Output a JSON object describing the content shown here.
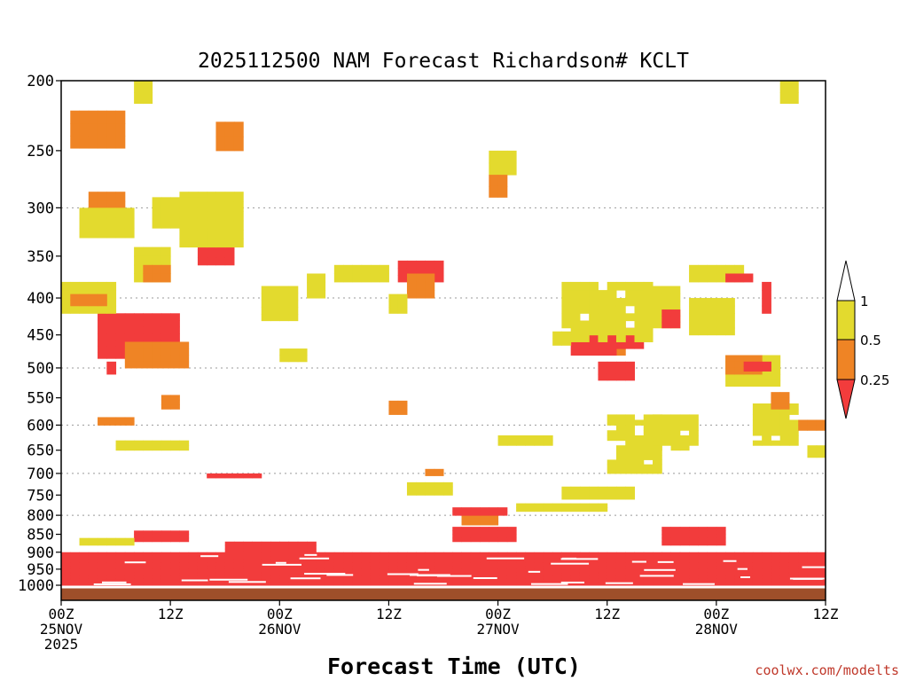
{
  "chart_data": {
    "type": "heatmap",
    "title": "2025112500 NAM Forecast Richardson# KCLT",
    "xlabel": "Forecast Time (UTC)",
    "ylabel": "",
    "credit": "coolwx.com/modelts",
    "x_unit": "forecast hour",
    "xlim": [
      0,
      84
    ],
    "y_unit": "hPa",
    "ylim": [
      1000,
      200
    ],
    "y_ticks": [
      200,
      250,
      300,
      350,
      400,
      450,
      500,
      550,
      600,
      650,
      700,
      750,
      800,
      850,
      900,
      950,
      1000
    ],
    "dotted_gridlines_hpa": [
      300,
      400,
      500,
      600,
      700,
      800
    ],
    "x_ticks": [
      {
        "hour": 0,
        "line1": "00Z",
        "line2": "25NOV",
        "line3": "2025"
      },
      {
        "hour": 12,
        "line1": "12Z",
        "line2": "",
        "line3": ""
      },
      {
        "hour": 24,
        "line1": "00Z",
        "line2": "26NOV",
        "line3": ""
      },
      {
        "hour": 36,
        "line1": "12Z",
        "line2": "",
        "line3": ""
      },
      {
        "hour": 48,
        "line1": "00Z",
        "line2": "27NOV",
        "line3": ""
      },
      {
        "hour": 60,
        "line1": "12Z",
        "line2": "",
        "line3": ""
      },
      {
        "hour": 72,
        "line1": "00Z",
        "line2": "28NOV",
        "line3": ""
      },
      {
        "hour": 84,
        "line1": "12Z",
        "line2": "",
        "line3": ""
      }
    ],
    "legend": {
      "placement": "right",
      "bins": [
        {
          "label": "0.25",
          "color": "#f23c3c",
          "range": "< 0.25"
        },
        {
          "label": "0.5",
          "color": "#ef8425",
          "range": "0.25 - 0.5"
        },
        {
          "label": "1",
          "color": "#e3da2e",
          "range": "0.5 - 1"
        },
        {
          "label": "",
          "color": "#ffffff",
          "range": "> 1"
        }
      ]
    },
    "colors": {
      "low": "#f23c3c",
      "mid": "#ef8425",
      "high": "#e3da2e",
      "ground": "#9e4f2a"
    },
    "ground_hpa": 1010,
    "regions": [
      {
        "t": [
          0,
          84
        ],
        "p": [
          900,
          1000
        ],
        "cat": "low"
      },
      {
        "t": [
          18,
          28
        ],
        "p": [
          870,
          910
        ],
        "cat": "low"
      },
      {
        "t": [
          43,
          50
        ],
        "p": [
          830,
          870
        ],
        "cat": "low"
      },
      {
        "t": [
          66,
          73
        ],
        "p": [
          830,
          880
        ],
        "cat": "low"
      },
      {
        "t": [
          8,
          14
        ],
        "p": [
          840,
          870
        ],
        "cat": "low"
      },
      {
        "t": [
          2,
          8
        ],
        "p": [
          860,
          880
        ],
        "cat": "high"
      },
      {
        "t": [
          44,
          48
        ],
        "p": [
          800,
          825
        ],
        "cat": "mid"
      },
      {
        "t": [
          43,
          49
        ],
        "p": [
          780,
          800
        ],
        "cat": "low"
      },
      {
        "t": [
          50,
          60
        ],
        "p": [
          770,
          790
        ],
        "cat": "high"
      },
      {
        "t": [
          55,
          63
        ],
        "p": [
          730,
          760
        ],
        "cat": "high"
      },
      {
        "t": [
          4,
          13
        ],
        "p": [
          420,
          485
        ],
        "cat": "low"
      },
      {
        "t": [
          7,
          14
        ],
        "p": [
          460,
          500
        ],
        "cat": "mid"
      },
      {
        "t": [
          15,
          19
        ],
        "p": [
          325,
          360
        ],
        "cat": "low"
      },
      {
        "t": [
          13,
          20
        ],
        "p": [
          285,
          340
        ],
        "cat": "high"
      },
      {
        "t": [
          37,
          42
        ],
        "p": [
          355,
          380
        ],
        "cat": "low"
      },
      {
        "t": [
          38,
          41
        ],
        "p": [
          370,
          400
        ],
        "cat": "mid"
      },
      {
        "t": [
          30,
          36
        ],
        "p": [
          360,
          380
        ],
        "cat": "high"
      },
      {
        "t": [
          57,
          62
        ],
        "p": [
          430,
          480
        ],
        "cat": "mid"
      },
      {
        "t": [
          56,
          61
        ],
        "p": [
          450,
          480
        ],
        "cat": "low"
      },
      {
        "t": [
          60,
          64
        ],
        "p": [
          440,
          470
        ],
        "cat": "low"
      },
      {
        "t": [
          59,
          63
        ],
        "p": [
          490,
          520
        ],
        "cat": "low"
      },
      {
        "t": [
          55,
          65
        ],
        "p": [
          380,
          460
        ],
        "cat": "high"
      },
      {
        "t": [
          3,
          7
        ],
        "p": [
          285,
          320
        ],
        "cat": "mid"
      },
      {
        "t": [
          2,
          8
        ],
        "p": [
          300,
          330
        ],
        "cat": "high"
      },
      {
        "t": [
          0,
          6
        ],
        "p": [
          380,
          420
        ],
        "cat": "high"
      },
      {
        "t": [
          1,
          5
        ],
        "p": [
          395,
          410
        ],
        "cat": "mid"
      },
      {
        "t": [
          2,
          6
        ],
        "p": [
          228,
          245
        ],
        "cat": "low"
      },
      {
        "t": [
          1,
          7
        ],
        "p": [
          220,
          248
        ],
        "cat": "mid"
      },
      {
        "t": [
          10,
          16
        ],
        "p": [
          290,
          320
        ],
        "cat": "high"
      },
      {
        "t": [
          8,
          12
        ],
        "p": [
          340,
          380
        ],
        "cat": "high"
      },
      {
        "t": [
          9,
          12
        ],
        "p": [
          360,
          380
        ],
        "cat": "mid"
      },
      {
        "t": [
          17,
          20
        ],
        "p": [
          228,
          250
        ],
        "cat": "mid"
      },
      {
        "t": [
          47,
          50
        ],
        "p": [
          250,
          270
        ],
        "cat": "high"
      },
      {
        "t": [
          47,
          49
        ],
        "p": [
          270,
          290
        ],
        "cat": "mid"
      },
      {
        "t": [
          22,
          26
        ],
        "p": [
          385,
          430
        ],
        "cat": "high"
      },
      {
        "t": [
          27,
          29
        ],
        "p": [
          370,
          400
        ],
        "cat": "high"
      },
      {
        "t": [
          69,
          75
        ],
        "p": [
          360,
          380
        ],
        "cat": "high"
      },
      {
        "t": [
          73,
          76
        ],
        "p": [
          370,
          380
        ],
        "cat": "low"
      },
      {
        "t": [
          69,
          74
        ],
        "p": [
          400,
          450
        ],
        "cat": "high"
      },
      {
        "t": [
          73,
          79
        ],
        "p": [
          480,
          530
        ],
        "cat": "high"
      },
      {
        "t": [
          73,
          77
        ],
        "p": [
          480,
          510
        ],
        "cat": "mid"
      },
      {
        "t": [
          75,
          78
        ],
        "p": [
          490,
          505
        ],
        "cat": "low"
      },
      {
        "t": [
          76,
          81
        ],
        "p": [
          560,
          640
        ],
        "cat": "high"
      },
      {
        "t": [
          65,
          70
        ],
        "p": [
          580,
          650
        ],
        "cat": "high"
      },
      {
        "t": [
          60,
          66
        ],
        "p": [
          580,
          700
        ],
        "cat": "high"
      },
      {
        "t": [
          48,
          54
        ],
        "p": [
          620,
          640
        ],
        "cat": "high"
      },
      {
        "t": [
          38,
          43
        ],
        "p": [
          720,
          750
        ],
        "cat": "high"
      },
      {
        "t": [
          6,
          14
        ],
        "p": [
          630,
          650
        ],
        "cat": "high"
      },
      {
        "t": [
          4,
          8
        ],
        "p": [
          585,
          600
        ],
        "cat": "mid"
      },
      {
        "t": [
          11,
          13
        ],
        "p": [
          545,
          570
        ],
        "cat": "mid"
      },
      {
        "t": [
          36,
          38
        ],
        "p": [
          555,
          580
        ],
        "cat": "mid"
      },
      {
        "t": [
          81,
          84
        ],
        "p": [
          590,
          610
        ],
        "cat": "mid"
      },
      {
        "t": [
          82,
          84
        ],
        "p": [
          640,
          665
        ],
        "cat": "high"
      },
      {
        "t": [
          16,
          22
        ],
        "p": [
          700,
          710
        ],
        "cat": "low"
      },
      {
        "t": [
          40,
          42
        ],
        "p": [
          690,
          705
        ],
        "cat": "mid"
      },
      {
        "t": [
          36,
          38
        ],
        "p": [
          395,
          420
        ],
        "cat": "high"
      },
      {
        "t": [
          64,
          68
        ],
        "p": [
          385,
          440
        ],
        "cat": "high"
      },
      {
        "t": [
          78,
          80
        ],
        "p": [
          540,
          570
        ],
        "cat": "mid"
      },
      {
        "t": [
          66,
          68
        ],
        "p": [
          415,
          440
        ],
        "cat": "low"
      },
      {
        "t": [
          5,
          6
        ],
        "p": [
          490,
          510
        ],
        "cat": "low"
      },
      {
        "t": [
          77,
          78
        ],
        "p": [
          380,
          420
        ],
        "cat": "low"
      },
      {
        "t": [
          54,
          56
        ],
        "p": [
          445,
          465
        ],
        "cat": "high"
      },
      {
        "t": [
          24,
          27
        ],
        "p": [
          470,
          490
        ],
        "cat": "high"
      },
      {
        "t": [
          8,
          10
        ],
        "p": [
          200,
          215
        ],
        "cat": "high"
      },
      {
        "t": [
          79,
          81
        ],
        "p": [
          200,
          215
        ],
        "cat": "high"
      }
    ],
    "note": "Regions approximate the colored Richardson-number fields read from the image; cat: low < 0.25, mid 0.25-0.5, high 0.5-1."
  }
}
